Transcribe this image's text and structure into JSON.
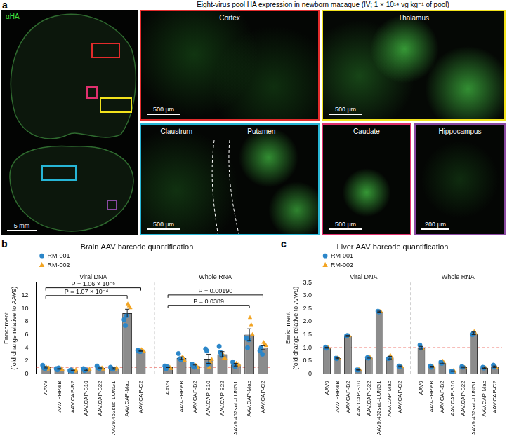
{
  "panel_a": {
    "label": "a",
    "title": "Eight-virus pool HA expression in newborn macaque (IV; 1 × 10¹⁴ vg kg⁻¹ of pool)",
    "stain": "αHA",
    "overview_scale_bar": "5 mm",
    "insets": [
      {
        "labels": [
          "Cortex"
        ],
        "color": "#e32b2b",
        "scale_bar": "500 µm"
      },
      {
        "labels": [
          "Thalamus"
        ],
        "color": "#f2e21c",
        "scale_bar": "500 µm"
      },
      {
        "labels": [
          "Claustrum",
          "Putamen"
        ],
        "color": "#27b6d6",
        "scale_bar": "500 µm"
      },
      {
        "labels": [
          "Caudate"
        ],
        "color": "#e0306e",
        "scale_bar": "500 µm"
      },
      {
        "labels": [
          "Hippocampus"
        ],
        "color": "#8b4aa3",
        "scale_bar": "200 µm"
      }
    ]
  },
  "chart_data": [
    {
      "type": "bar",
      "panel_label": "b",
      "title": "Brain AAV barcode quantification",
      "y_label": [
        "Enrichment",
        "(fold change relative to AAV9)"
      ],
      "groups": [
        "Viral DNA",
        "Whole RNA"
      ],
      "categories": [
        "AAV9",
        "AAV-PHP.eB",
        "AAV.CAP-B2",
        "AAV.CAP-B10",
        "AAV.CAP-B22",
        "AAV9.452sub-LUNG1",
        "AAV.CAP-Mac",
        "AAV.CAP-C2",
        "AAV9",
        "AAV-PHP.eB",
        "AAV.CAP-B2",
        "AAV.CAP-B10",
        "AAV.CAP-B22",
        "AAV9.452sub-LUNG1",
        "AAV.CAP-Mac",
        "AAV.CAP-C2"
      ],
      "values": [
        1.0,
        0.75,
        0.5,
        0.6,
        0.9,
        0.8,
        9.3,
        3.5,
        1.0,
        2.4,
        1.2,
        2.3,
        3.0,
        1.4,
        6.0,
        4.0
      ],
      "errors": [
        0.1,
        0.05,
        0.05,
        0.1,
        0.1,
        0.1,
        0.6,
        0.05,
        0.05,
        0.2,
        0.15,
        0.7,
        0.4,
        0.2,
        0.9,
        0.3
      ],
      "color": "#8c8c8c",
      "series": [
        {
          "name": "RM-001",
          "color": "#2b86c9",
          "marker": "circle",
          "values": [
            [
              1.3,
              0.9,
              0.8
            ],
            [
              0.8,
              0.6,
              0.9
            ],
            [
              0.5,
              0.6,
              0.4
            ],
            [
              0.8,
              0.5,
              0.6
            ],
            [
              1.2,
              0.9,
              0.8
            ],
            [
              1.0,
              0.8,
              0.7
            ],
            [
              8.3,
              7.4,
              8.9
            ],
            [
              3.6,
              3.5,
              3.4
            ],
            [
              1.2,
              0.8,
              1.1
            ],
            [
              3.1,
              2.3,
              2.2
            ],
            [
              1.5,
              1.2,
              1.0
            ],
            [
              3.8,
              3.5,
              1.5
            ],
            [
              4.2,
              3.3,
              2.8
            ],
            [
              1.8,
              1.3,
              1.1
            ],
            [
              5.5,
              4.0,
              5.2
            ],
            [
              3.5,
              4.0,
              3.0
            ]
          ]
        },
        {
          "name": "RM-002",
          "color": "#f2a422",
          "marker": "triangle",
          "values": [
            [
              1.0,
              0.7,
              0.9
            ],
            [
              0.7,
              0.8,
              0.6
            ],
            [
              0.5,
              0.4,
              0.6
            ],
            [
              0.5,
              0.6,
              0.7
            ],
            [
              0.8,
              0.9,
              0.7
            ],
            [
              0.8,
              0.7,
              0.9
            ],
            [
              10.7,
              10.4,
              10.1
            ],
            [
              3.7,
              3.6,
              3.4
            ],
            [
              0.9,
              1.0,
              0.8
            ],
            [
              2.5,
              2.4,
              2.0
            ],
            [
              1.3,
              1.1,
              0.9
            ],
            [
              1.0,
              1.8,
              2.2
            ],
            [
              3.0,
              2.4,
              2.3
            ],
            [
              1.6,
              1.2,
              1.4
            ],
            [
              8.6,
              7.5,
              6.0
            ],
            [
              4.8,
              4.6,
              4.3
            ]
          ]
        }
      ],
      "reference_line": {
        "value": 1,
        "color": "#e8483c",
        "line_style": "dashed"
      },
      "annotations": [
        {
          "text": "P = 1.07 × 10⁻⁴",
          "from": 0,
          "to": 6,
          "y": 12.0
        },
        {
          "text": "P = 1.06 × 10⁻⁶",
          "from": 0,
          "to": 7,
          "y": 13.2
        },
        {
          "text": "P = 0.0389",
          "from": 8,
          "to": 14,
          "y": 10.5
        },
        {
          "text": "P = 0.00190",
          "from": 8,
          "to": 15,
          "y": 12.1
        }
      ],
      "ylim": [
        0,
        14
      ],
      "yticks": [
        0,
        2,
        4,
        6,
        8,
        10,
        12
      ],
      "grid": false,
      "legend": "top left"
    },
    {
      "type": "bar",
      "panel_label": "c",
      "title": "Liver AAV barcode quantification",
      "y_label": [
        "Enrichment",
        "(fold change relative to AAV9)"
      ],
      "groups": [
        "Viral DNA",
        "Whole RNA"
      ],
      "categories": [
        "AAV9",
        "AAV-PHP.eB",
        "AAV.CAP-B2",
        "AAV.CAP-B10",
        "AAV.CAP-B22",
        "AAV9.452sub-LUNG1",
        "AAV.CAP-Mac",
        "AAV.CAP-C2",
        "AAV9",
        "AAV-PHP.eB",
        "AAV.CAP-B2",
        "AAV.CAP-B10",
        "AAV.CAP-B22",
        "AAV9.452sub-LUNG1",
        "AAV.CAP-Mac",
        "AAV.CAP-C2"
      ],
      "values": [
        1.0,
        0.6,
        1.45,
        0.15,
        0.62,
        2.38,
        0.62,
        0.28,
        1.0,
        0.27,
        0.42,
        0.1,
        0.25,
        1.55,
        0.23,
        0.27
      ],
      "errors": [
        0.02,
        0.02,
        0.02,
        0.01,
        0.02,
        0.02,
        0.05,
        0.02,
        0.05,
        0.02,
        0.03,
        0.01,
        0.02,
        0.05,
        0.02,
        0.03
      ],
      "color": "#8c8c8c",
      "series": [
        {
          "name": "RM-001",
          "color": "#2b86c9",
          "marker": "circle",
          "values": [
            [
              1.02,
              0.98
            ],
            [
              0.6,
              0.58
            ],
            [
              1.45,
              1.47
            ],
            [
              0.15,
              0.14
            ],
            [
              0.62,
              0.6
            ],
            [
              2.4,
              2.37
            ],
            [
              0.58,
              0.6
            ],
            [
              0.3,
              0.27
            ],
            [
              1.1,
              0.98
            ],
            [
              0.3,
              0.25
            ],
            [
              0.45,
              0.4
            ],
            [
              0.1,
              0.09
            ],
            [
              0.28,
              0.25
            ],
            [
              1.5,
              1.55
            ],
            [
              0.25,
              0.22
            ],
            [
              0.33,
              0.25
            ]
          ]
        },
        {
          "name": "RM-002",
          "color": "#f2a422",
          "marker": "triangle",
          "values": [
            [
              1.0,
              1.0
            ],
            [
              0.62,
              0.57
            ],
            [
              1.44,
              1.46
            ],
            [
              0.17,
              0.15
            ],
            [
              0.65,
              0.61
            ],
            [
              2.39,
              2.38
            ],
            [
              0.7,
              0.6
            ],
            [
              0.28,
              0.27
            ],
            [
              0.97,
              0.95
            ],
            [
              0.27,
              0.26
            ],
            [
              0.48,
              0.43
            ],
            [
              0.12,
              0.1
            ],
            [
              0.25,
              0.24
            ],
            [
              1.62,
              1.55
            ],
            [
              0.25,
              0.22
            ],
            [
              0.28,
              0.24
            ]
          ]
        }
      ],
      "reference_line": {
        "value": 1,
        "color": "#e8483c",
        "line_style": "dashed"
      },
      "ylim": [
        0,
        3.5
      ],
      "yticks": [
        0,
        0.5,
        {
          "value": 1,
          "label": "1.0"
        },
        1.5,
        {
          "value": 2,
          "label": "2.0"
        },
        2.5,
        {
          "value": 3,
          "label": "3.0"
        },
        3.5
      ],
      "grid": false,
      "legend": "top left"
    }
  ]
}
